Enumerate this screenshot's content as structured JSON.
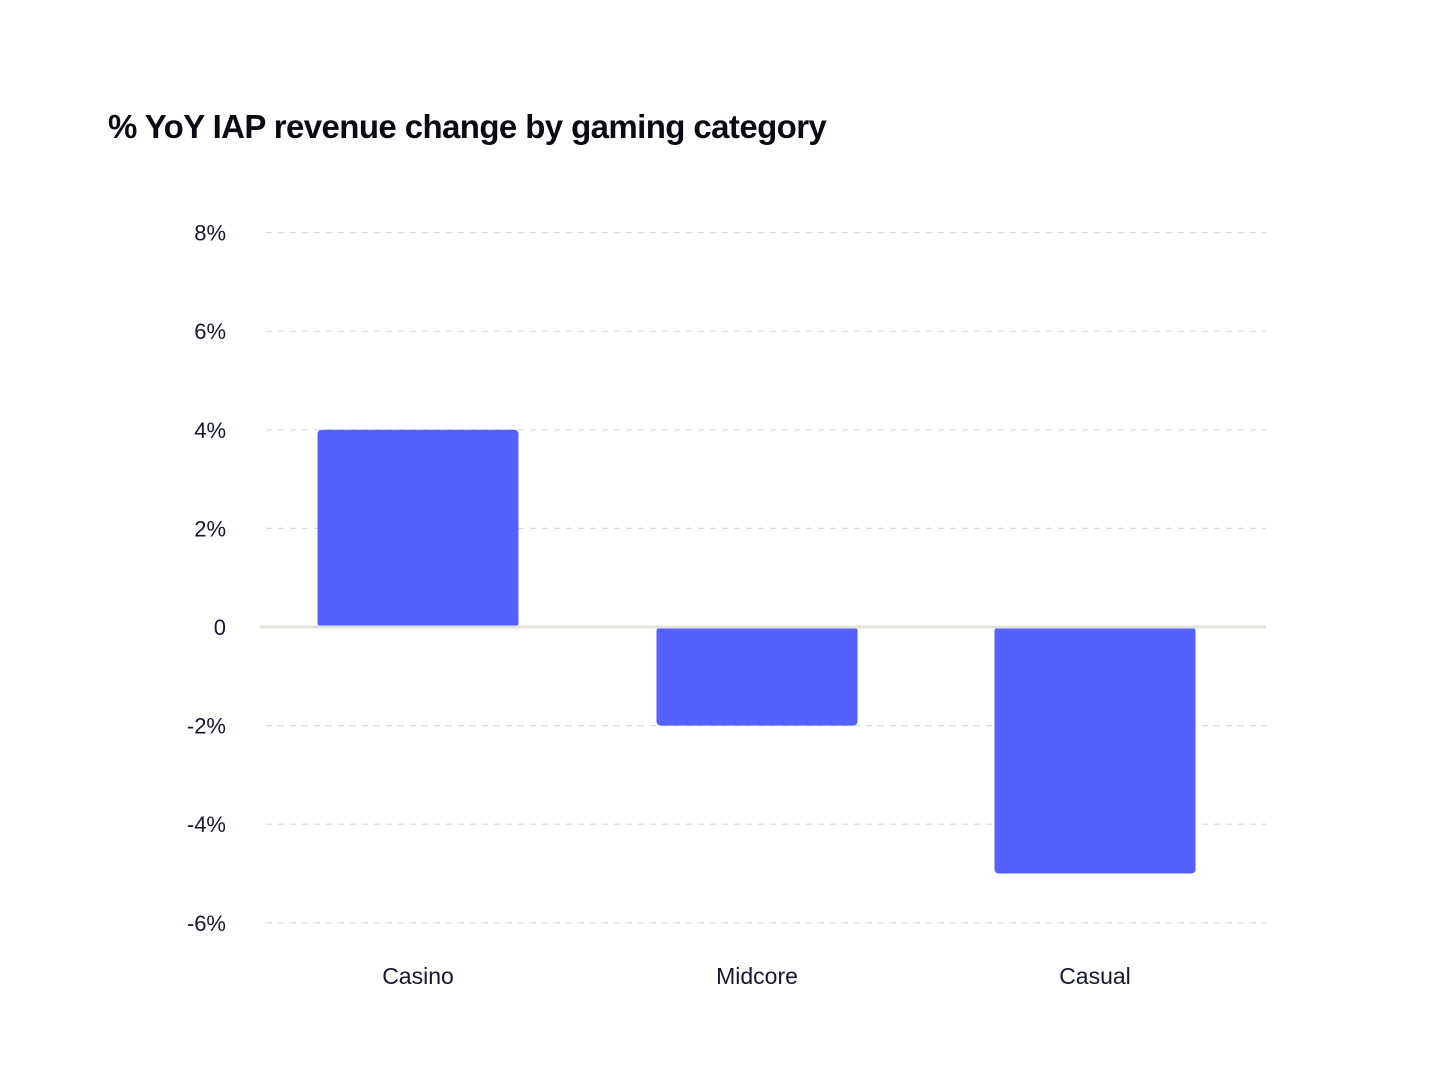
{
  "chart_data": {
    "type": "bar",
    "title": "% YoY IAP revenue change by gaming category",
    "xlabel": "",
    "ylabel": "",
    "categories": [
      "Casino",
      "Midcore",
      "Casual"
    ],
    "values": [
      4,
      -2,
      -5
    ],
    "ylim": [
      -6,
      8
    ],
    "yticks": [
      8,
      6,
      4,
      2,
      0,
      -2,
      -4,
      -6
    ],
    "ytick_labels": [
      "8%",
      "6%",
      "4%",
      "2%",
      "0",
      "-2%",
      "-4%",
      "-6%"
    ],
    "grid": true,
    "legend": "none",
    "colors": {
      "bar": "#5561ff",
      "grid": "#dcdcdc",
      "zero_line": "#e3e3dc",
      "text": "#14172e"
    }
  }
}
